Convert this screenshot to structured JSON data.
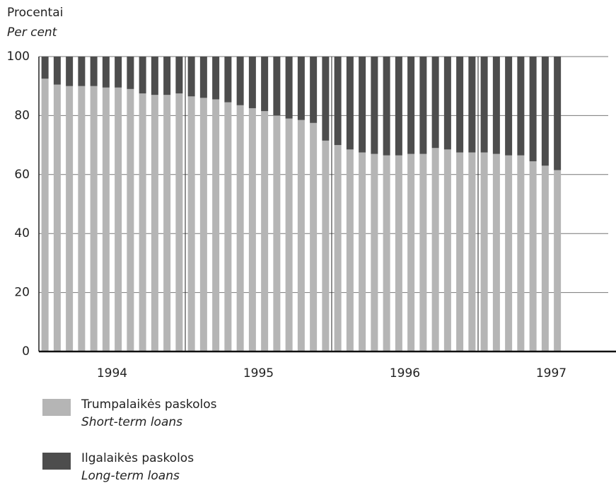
{
  "chart_data": {
    "type": "stacked_bar",
    "y_label": "Procentai",
    "y_label_en": "Per cent",
    "categories": [
      null,
      null,
      null,
      null,
      null,
      null,
      null,
      null,
      null,
      null,
      null,
      null,
      null,
      null,
      null,
      null,
      null,
      null,
      null,
      null,
      null,
      null,
      null,
      null,
      null,
      null,
      null,
      null,
      null,
      null,
      null,
      null,
      null,
      null,
      null,
      null,
      null,
      null,
      null,
      null,
      null,
      null,
      null
    ],
    "year_labels": [
      "1994",
      "1995",
      "1996",
      "1997"
    ],
    "series": [
      {
        "name": "Trumpalaikės paskolos",
        "name_en": "Short-term loans",
        "color": "#b5b5b5",
        "values": [
          92.5,
          90.5,
          90,
          90,
          90,
          89.5,
          89.5,
          89,
          87.5,
          87,
          87,
          87.5,
          86.5,
          86,
          85.5,
          84.5,
          83.5,
          82.5,
          81.5,
          80,
          79,
          78.5,
          77.5,
          71.5,
          70,
          68.5,
          67.5,
          67,
          66.5,
          66.5,
          67,
          67,
          69,
          68.5,
          67.5,
          67.5,
          67.5,
          67,
          66.5,
          66.5,
          64.5,
          63,
          61.5
        ]
      },
      {
        "name": "Ilgalaikės paskolos",
        "name_en": "Long-term loans",
        "color": "#4d4d4d",
        "values": [
          7.5,
          9.5,
          10,
          10,
          10,
          10.5,
          10.5,
          11,
          12.5,
          13,
          13,
          12.5,
          13.5,
          14,
          14.5,
          15.5,
          16.5,
          17.5,
          18.5,
          20,
          21,
          21.5,
          22.5,
          28.5,
          30,
          31.5,
          32.5,
          33,
          33.5,
          33.5,
          33,
          33,
          31,
          31.5,
          32.5,
          32.5,
          32.5,
          33,
          33.5,
          33.5,
          35.5,
          37,
          38.5
        ]
      }
    ],
    "ylim": [
      0,
      100
    ],
    "yticks": [
      0,
      20,
      40,
      60,
      80,
      100
    ],
    "grid": true
  }
}
